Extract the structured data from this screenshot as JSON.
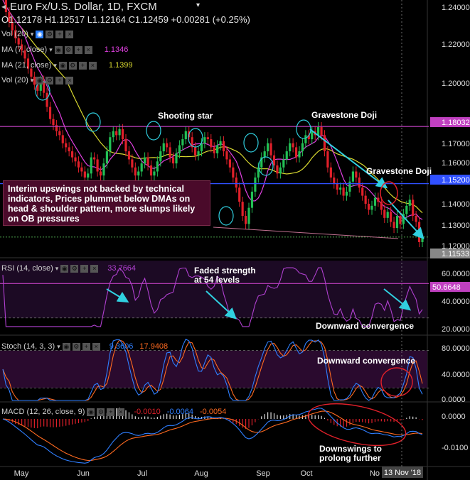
{
  "header": {
    "symbol": "Euro Fx/U.S. Dollar, 1D, FXCM",
    "ohlc": "O1.12178  H1.12517  L1.12164  C1.12459  +0.00281 (+0.25%)"
  },
  "indicators": {
    "vol1": "Vol (20)",
    "ma7": "MA (7, close)",
    "ma7_value": "1.1346",
    "ma21": "MA (21, close)",
    "ma21_value": "1.1399",
    "vol2": "Vol (20)",
    "rsi": "RSI (14, close)",
    "rsi_value": "33.7664",
    "stoch": "Stoch (14, 3, 3)",
    "stoch_k": "9.3606",
    "stoch_d": "17.9408",
    "macd": "MACD (12, 26, close, 9)",
    "macd_hist": "-0.0010",
    "macd_line": "-0.0064",
    "macd_signal": "-0.0054"
  },
  "annotations": {
    "note": "Interim upswings not backed by technical indicators, Prices plummet below DMAs on head & shoulder pattern, more slumps likely on OB pressures",
    "shooting_star": "Shooting star",
    "gravestone1": "Gravestone Doji",
    "gravestone2": "Gravestone Doji",
    "faded": "Faded strength at 54 levels",
    "downconv1": "Downward convergence",
    "downconv2": "Downward convergence",
    "downswings": "Downswings to prolong further"
  },
  "colors": {
    "background": "#000000",
    "bull": "#22c055",
    "bear": "#e0202a",
    "ma7": "#e040e0",
    "ma21": "#d8d830",
    "rsi": "#b040d0",
    "stoch_k": "#2f7fff",
    "stoch_d": "#ff6a20",
    "macd": "#2f7fff",
    "signal": "#ff6a20",
    "resistance": "#c040c0",
    "support": "#3050ff",
    "arrow": "#30d0e0",
    "circle": "#30d0e0",
    "red_circle": "#e0202a"
  },
  "chart_data": {
    "type": "line",
    "title": "Euro Fx/U.S. Dollar, 1D, FXCM",
    "x_ticks": [
      "May",
      "Jun",
      "Jul",
      "Aug",
      "Sep",
      "Oct",
      "No"
    ],
    "cursor_date": "13 Nov '18",
    "price": {
      "ylim": [
        1.117,
        1.243
      ],
      "y_ticks": [
        "1.24000",
        "1.22000",
        "1.20000",
        "1.17000",
        "1.16000",
        "1.14000",
        "1.13000",
        "1.12000"
      ],
      "markers": [
        {
          "label": "1.18032",
          "value": 1.18032,
          "color": "#c040c0"
        },
        {
          "label": "1.15200",
          "value": 1.152,
          "color": "#3050ff"
        },
        {
          "label": "1.11533",
          "value": 1.11533,
          "color": "#888888"
        }
      ],
      "close": [
        1.243,
        1.237,
        1.232,
        1.228,
        1.224,
        1.221,
        1.218,
        1.214,
        1.209,
        1.205,
        1.201,
        1.198,
        1.203,
        1.197,
        1.19,
        1.184,
        1.181,
        1.178,
        1.176,
        1.172,
        1.17,
        1.168,
        1.165,
        1.163,
        1.16,
        1.158,
        1.155,
        1.157,
        1.165,
        1.164,
        1.158,
        1.156,
        1.162,
        1.168,
        1.175,
        1.178,
        1.176,
        1.179,
        1.174,
        1.168,
        1.164,
        1.16,
        1.156,
        1.158,
        1.162,
        1.165,
        1.161,
        1.156,
        1.158,
        1.163,
        1.168,
        1.172,
        1.17,
        1.165,
        1.162,
        1.167,
        1.171,
        1.174,
        1.178,
        1.175,
        1.17,
        1.166,
        1.168,
        1.172,
        1.175,
        1.174,
        1.17,
        1.167,
        1.171,
        1.173,
        1.168,
        1.164,
        1.16,
        1.155,
        1.15,
        1.143,
        1.136,
        1.132,
        1.14,
        1.148,
        1.155,
        1.16,
        1.165,
        1.168,
        1.172,
        1.166,
        1.161,
        1.157,
        1.16,
        1.164,
        1.168,
        1.172,
        1.17,
        1.165,
        1.168,
        1.172,
        1.176,
        1.174,
        1.178,
        1.176,
        1.18,
        1.176,
        1.168,
        1.16,
        1.155,
        1.152,
        1.149,
        1.15,
        1.146,
        1.148,
        1.153,
        1.158,
        1.155,
        1.15,
        1.146,
        1.142,
        1.139,
        1.141,
        1.145,
        1.143,
        1.139,
        1.135,
        1.138,
        1.133,
        1.13,
        1.136,
        1.132,
        1.137,
        1.141,
        1.144,
        1.136,
        1.133,
        1.123,
        1.125
      ]
    },
    "rsi": {
      "ylim": [
        18,
        72
      ],
      "y_ticks": [
        "60.0000",
        "40.0000",
        "20.0000"
      ],
      "marker": "50.6648",
      "levels": [
        70,
        30
      ]
    },
    "stoch": {
      "ylim": [
        0,
        100
      ],
      "y_ticks": [
        "80.0000",
        "40.0000",
        "0.0000"
      ],
      "levels": [
        80,
        20
      ]
    },
    "macd": {
      "ylim": [
        -0.013,
        0.004
      ],
      "y_ticks": [
        "0.0000",
        "-0.0100"
      ]
    }
  }
}
